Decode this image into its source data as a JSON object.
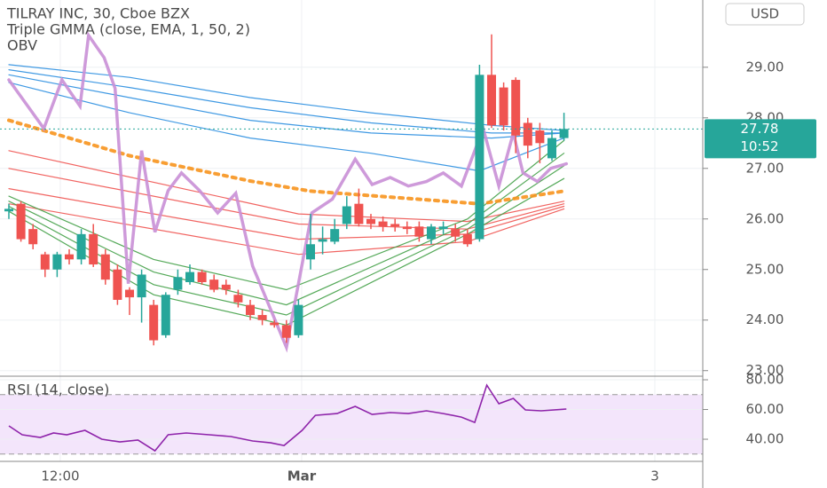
{
  "chart_data": [
    {
      "type": "candlestick",
      "title": "TILRAY INC, 30, Cboe BZX",
      "indicators": [
        "Triple GMMA (close, EMA, 1, 50, 2)",
        "OBV"
      ],
      "currency": "USD",
      "last_price": 27.78,
      "last_time": "10:52",
      "up_color": "#26a69a",
      "down_color": "#ef5350",
      "xlim": [
        -0.735,
        57.5
      ],
      "xticks": [
        {
          "value": 4.26,
          "label": "12:00"
        },
        {
          "value": 24.26,
          "label": "Mar"
        },
        {
          "value": 53.53,
          "label": "3"
        }
      ],
      "ylim": [
        22.89,
        30.33
      ],
      "yticks": [
        {
          "value": 23,
          "label": "23.00"
        },
        {
          "value": 24,
          "label": "24.00"
        },
        {
          "value": 25,
          "label": "25.00"
        },
        {
          "value": 26,
          "label": "26.00"
        },
        {
          "value": 27,
          "label": "27.00"
        },
        {
          "value": 28,
          "label": "28.00"
        },
        {
          "value": 29,
          "label": "29.00"
        }
      ],
      "open": [
        26.15,
        26.3,
        25.8,
        25.3,
        25.0,
        25.3,
        25.2,
        25.7,
        25.3,
        25.0,
        24.6,
        24.45,
        24.3,
        23.7,
        24.6,
        24.75,
        24.95,
        24.8,
        24.7,
        24.5,
        24.3,
        24.1,
        23.95,
        23.9,
        23.7,
        25.2,
        25.55,
        25.55,
        25.9,
        26.3,
        26.0,
        25.95,
        25.9,
        25.85,
        25.85,
        25.6,
        25.8,
        25.8,
        25.7,
        25.6,
        28.85,
        28.6,
        28.75,
        27.9,
        27.75,
        27.2,
        27.6
      ],
      "high": [
        26.3,
        26.35,
        25.9,
        25.35,
        25.35,
        25.4,
        25.8,
        25.9,
        25.4,
        25.1,
        24.65,
        25.0,
        24.4,
        24.55,
        25.0,
        25.1,
        25.0,
        24.9,
        24.8,
        24.6,
        24.4,
        24.2,
        24.0,
        24.0,
        24.4,
        26.1,
        25.85,
        26.0,
        26.45,
        26.6,
        26.1,
        26.05,
        26.0,
        25.95,
        25.95,
        25.9,
        25.95,
        25.9,
        25.8,
        29.05,
        29.65,
        28.7,
        28.8,
        28.0,
        27.9,
        27.75,
        28.1
      ],
      "low": [
        26.0,
        25.55,
        25.4,
        24.85,
        24.85,
        25.1,
        25.1,
        25.05,
        24.7,
        24.3,
        24.1,
        23.95,
        23.5,
        23.65,
        24.5,
        24.7,
        24.7,
        24.55,
        24.5,
        24.25,
        24.0,
        23.9,
        23.85,
        23.55,
        23.65,
        25.0,
        25.3,
        25.5,
        25.8,
        25.85,
        25.8,
        25.75,
        25.75,
        25.7,
        25.55,
        25.5,
        25.7,
        25.55,
        25.45,
        25.55,
        27.8,
        27.75,
        27.3,
        27.2,
        27.1,
        27.15,
        27.55
      ],
      "close": [
        26.2,
        25.6,
        25.5,
        25.0,
        25.3,
        25.2,
        25.7,
        25.1,
        24.8,
        24.4,
        24.45,
        24.9,
        23.6,
        24.5,
        24.85,
        24.95,
        24.75,
        24.6,
        24.6,
        24.35,
        24.1,
        24.0,
        23.9,
        23.65,
        24.3,
        25.5,
        25.6,
        25.8,
        26.25,
        25.9,
        25.9,
        25.85,
        25.85,
        25.8,
        25.65,
        25.85,
        25.85,
        25.65,
        25.5,
        28.85,
        27.85,
        27.85,
        27.65,
        27.45,
        27.5,
        27.6,
        27.78
      ],
      "lines": [
        {
          "color": "#2a8ee0",
          "x": [
            0,
            10,
            20,
            30,
            40,
            46
          ],
          "values": [
            29.05,
            28.8,
            28.4,
            28.1,
            27.85,
            27.75
          ]
        },
        {
          "color": "#2a8ee0",
          "x": [
            0,
            10,
            20,
            30,
            40,
            46
          ],
          "values": [
            28.95,
            28.6,
            28.2,
            27.9,
            27.7,
            27.7
          ]
        },
        {
          "color": "#2a8ee0",
          "x": [
            0,
            10,
            20,
            30,
            40,
            46
          ],
          "values": [
            28.85,
            28.4,
            27.95,
            27.7,
            27.6,
            27.7
          ]
        },
        {
          "color": "#2a8ee0",
          "x": [
            0,
            10,
            20,
            30,
            39,
            46
          ],
          "values": [
            28.7,
            28.1,
            27.6,
            27.3,
            26.95,
            27.6
          ]
        },
        {
          "color": "#ef5350",
          "x": [
            0,
            24,
            38,
            46
          ],
          "values": [
            27.35,
            26.1,
            25.95,
            26.35
          ]
        },
        {
          "color": "#ef5350",
          "x": [
            0,
            24,
            38,
            46
          ],
          "values": [
            27.0,
            25.9,
            25.8,
            26.3
          ]
        },
        {
          "color": "#ef5350",
          "x": [
            0,
            24,
            38,
            46
          ],
          "values": [
            26.6,
            25.6,
            25.7,
            26.25
          ]
        },
        {
          "color": "#ef5350",
          "x": [
            0,
            24,
            38,
            46
          ],
          "values": [
            26.3,
            25.3,
            25.55,
            26.2
          ]
        },
        {
          "color": "#43a047",
          "x": [
            0,
            12,
            23,
            38,
            46
          ],
          "values": [
            26.45,
            25.2,
            24.6,
            26.0,
            27.55
          ]
        },
        {
          "color": "#43a047",
          "x": [
            0,
            12,
            23,
            38,
            46
          ],
          "values": [
            26.35,
            24.95,
            24.3,
            25.9,
            27.3
          ]
        },
        {
          "color": "#43a047",
          "x": [
            0,
            12,
            23,
            38,
            46
          ],
          "values": [
            26.25,
            24.7,
            24.1,
            25.8,
            27.05
          ]
        },
        {
          "color": "#43a047",
          "x": [
            0,
            12,
            23,
            38,
            46
          ],
          "values": [
            26.15,
            24.5,
            23.9,
            25.7,
            26.8
          ]
        },
        {
          "color": "#f7941d",
          "dashed": true,
          "x": [
            0,
            10,
            20,
            25,
            39,
            46
          ],
          "values": [
            27.95,
            27.25,
            26.75,
            26.55,
            26.3,
            26.55
          ]
        },
        {
          "color": "#c98fd6",
          "x": [
            0,
            2.9,
            4.4,
            5.9,
            6.6,
            7.9,
            8.8,
            9.9,
            11,
            12.1,
            13.2,
            14.3,
            15.8,
            17.3,
            18.8,
            20.2,
            23,
            25.1,
            26.8,
            28.7,
            30.1,
            31.6,
            33.1,
            34.6,
            36,
            37.5,
            39.3,
            40.6,
            41.8,
            42.6,
            43.8,
            44.9,
            46.2
          ],
          "values": [
            28.75,
            27.79,
            28.75,
            28.23,
            29.63,
            29.19,
            28.58,
            24.72,
            27.35,
            25.74,
            26.56,
            26.91,
            26.56,
            26.12,
            26.51,
            25.07,
            23.46,
            26.12,
            26.39,
            27.18,
            26.68,
            26.82,
            26.65,
            26.74,
            26.91,
            26.65,
            27.79,
            26.65,
            27.7,
            26.91,
            26.74,
            27.0,
            27.09
          ]
        }
      ]
    },
    {
      "type": "line",
      "title": "RSI (14, close)",
      "color": "#8e24aa",
      "band": [
        30,
        70
      ],
      "ylim": [
        25.1,
        82.4
      ],
      "yticks": [
        {
          "value": 40,
          "label": "40.00"
        },
        {
          "value": 60,
          "label": "60.00"
        },
        {
          "value": 80,
          "label": "80.00"
        }
      ],
      "x": [
        0,
        1.1,
        2.6,
        3.7,
        4.8,
        6.3,
        7.7,
        9.2,
        10.7,
        12.1,
        13.2,
        14.7,
        16.6,
        18.4,
        20.2,
        21.7,
        22.8,
        24.3,
        25.4,
        27.2,
        28.7,
        30.1,
        31.6,
        33.1,
        34.6,
        36,
        37.5,
        38.6,
        39.6,
        40.6,
        41.8,
        42.8,
        44.1,
        46.2
      ],
      "values": [
        48.96,
        43.0,
        41.2,
        44.2,
        43.0,
        46.0,
        40.0,
        38.2,
        39.4,
        32.2,
        43.0,
        44.2,
        43.0,
        41.8,
        38.8,
        37.6,
        35.8,
        46.0,
        56.1,
        57.3,
        62.1,
        56.7,
        57.9,
        57.3,
        59.1,
        57.3,
        54.9,
        51.3,
        76.4,
        63.9,
        67.5,
        59.7,
        59.1,
        60.3
      ]
    }
  ]
}
